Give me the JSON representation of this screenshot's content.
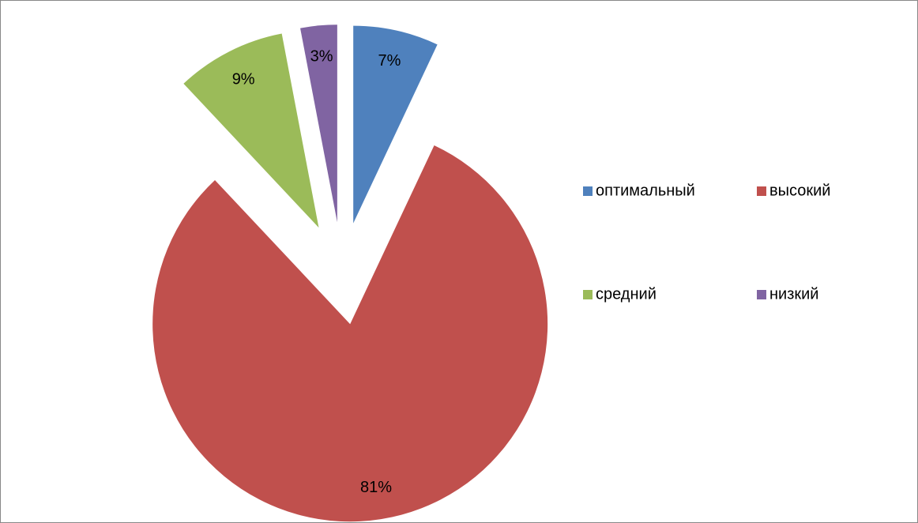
{
  "chart_data": {
    "type": "pie",
    "categories": [
      "оптимальный",
      "высокий",
      "средний",
      "низкий"
    ],
    "values": [
      7,
      81,
      9,
      3
    ],
    "value_labels": [
      "7%",
      "81%",
      "9%",
      "3%"
    ],
    "colors": [
      "#4f81bd",
      "#c0504d",
      "#9bbb59",
      "#8064a2"
    ],
    "legend": "right"
  }
}
